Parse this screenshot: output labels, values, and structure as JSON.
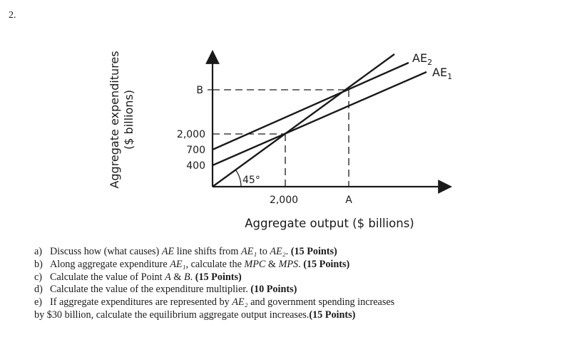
{
  "question_number": "2.",
  "figure": {
    "y_axis_label_line1": "Aggregate expenditures",
    "y_axis_label_line2": "($ billions)",
    "x_axis_label": "Aggregate output ($ billions)",
    "y_ticks": [
      "B",
      "2,000",
      "700",
      "400"
    ],
    "x_ticks": [
      "2,000",
      "A"
    ],
    "angle_label": "45°",
    "line_labels": {
      "ae2_main": "AE",
      "ae2_sub": "2",
      "ae1_main": "AE",
      "ae1_sub": "1"
    }
  },
  "questions": [
    {
      "letter": "a)",
      "parts": [
        {
          "t": "Discuss how (what causes) ",
          "s": "n"
        },
        {
          "t": "AE",
          "s": "i"
        },
        {
          "t": " line shifts from ",
          "s": "n"
        },
        {
          "t": "AE₁",
          "s": "i"
        },
        {
          "t": " to ",
          "s": "n"
        },
        {
          "t": "AE₂",
          "s": "i"
        },
        {
          "t": ". ",
          "s": "n"
        },
        {
          "t": "(15 Points)",
          "s": "b"
        }
      ]
    },
    {
      "letter": "b)",
      "parts": [
        {
          "t": "Along aggregate expenditure ",
          "s": "n"
        },
        {
          "t": "AE₁",
          "s": "i"
        },
        {
          "t": ", calculate the ",
          "s": "n"
        },
        {
          "t": "MPC",
          "s": "i"
        },
        {
          "t": " & ",
          "s": "n"
        },
        {
          "t": "MPS",
          "s": "i"
        },
        {
          "t": ". ",
          "s": "n"
        },
        {
          "t": "(15 Points)",
          "s": "b"
        }
      ]
    },
    {
      "letter": "c)",
      "parts": [
        {
          "t": "Calculate the value of Point ",
          "s": "n"
        },
        {
          "t": "A",
          "s": "i"
        },
        {
          "t": " & ",
          "s": "n"
        },
        {
          "t": "B",
          "s": "i"
        },
        {
          "t": ". ",
          "s": "n"
        },
        {
          "t": "(15 Points)",
          "s": "b"
        }
      ]
    },
    {
      "letter": "d)",
      "parts": [
        {
          "t": "Calculate the value of the expenditure multiplier. ",
          "s": "n"
        },
        {
          "t": "(10 Points)",
          "s": "b"
        }
      ]
    },
    {
      "letter": "e)",
      "parts": [
        {
          "t": "If aggregate expenditures are represented by ",
          "s": "n"
        },
        {
          "t": "AE₂",
          "s": "i"
        },
        {
          "t": " and government spending increases",
          "s": "n"
        }
      ],
      "continuation": [
        {
          "t": "by $30 billion, calculate the equilibrium aggregate output increases. ",
          "s": "n"
        },
        {
          "t": "(15 Points)",
          "s": "b"
        }
      ]
    }
  ]
}
